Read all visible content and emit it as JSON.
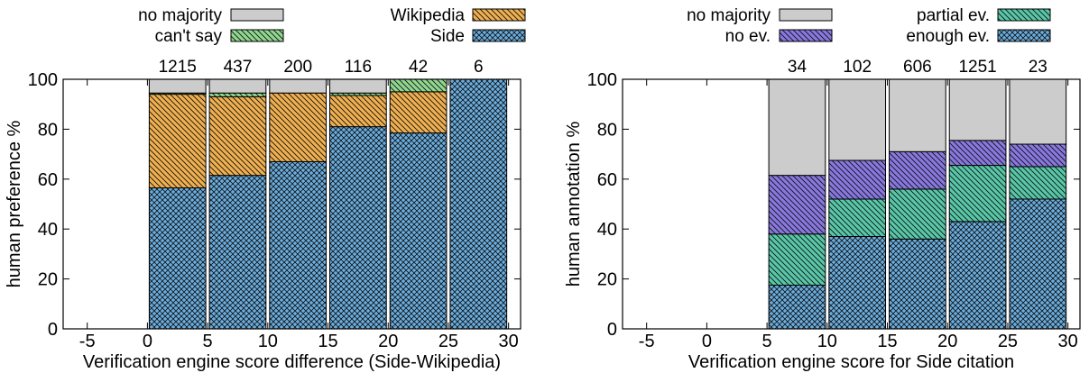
{
  "colors": {
    "no_majority": "#cccccc",
    "cant_say": "#90d890",
    "wikipedia": "#f0b050",
    "side": "#6aaee0",
    "no_ev": "#8878e0",
    "partial_ev": "#58c8a8",
    "enough_ev": "#6aaee0",
    "stroke": "#000000"
  },
  "chart_data": [
    {
      "type": "bar",
      "stacked": true,
      "title": "",
      "xlabel": "Verification engine score difference (Side-Wikipedia)",
      "ylabel": "human preference %",
      "xlim": [
        -7,
        31
      ],
      "ylim": [
        0,
        100
      ],
      "xticks": [
        -5,
        0,
        5,
        10,
        15,
        20,
        25,
        30
      ],
      "xtick_labels": [
        "-5",
        "0",
        "5",
        "10",
        "15",
        "20",
        "25",
        "30"
      ],
      "yticks": [
        0,
        20,
        40,
        60,
        80,
        100
      ],
      "ytick_labels": [
        "0",
        "20",
        "40",
        "60",
        "80",
        "100"
      ],
      "grid": false,
      "legend": "top, two columns above plot",
      "legend_order": [
        "no majority",
        "can't say",
        "Wikipedia",
        "Side"
      ],
      "bins": [
        [
          0,
          5
        ],
        [
          5,
          10
        ],
        [
          10,
          15
        ],
        [
          15,
          20
        ],
        [
          20,
          25
        ],
        [
          25,
          30
        ]
      ],
      "counts": [
        "1215",
        "437",
        "200",
        "116",
        "42",
        "6"
      ],
      "series": [
        {
          "name": "Side",
          "key": "side",
          "pattern": "cross",
          "values": [
            56.5,
            61.5,
            67,
            81,
            78.5,
            100
          ]
        },
        {
          "name": "Wikipedia",
          "key": "wikipedia",
          "pattern": "diag",
          "values": [
            37.5,
            31.5,
            27.5,
            12.5,
            16.5,
            0
          ]
        },
        {
          "name": "can't say",
          "key": "cant_say",
          "pattern": "diag",
          "values": [
            0.5,
            1.5,
            0,
            1,
            5,
            0
          ]
        },
        {
          "name": "no majority",
          "key": "no_majority",
          "pattern": "none",
          "values": [
            5.5,
            5.5,
            5.5,
            5.5,
            0,
            0
          ]
        }
      ]
    },
    {
      "type": "bar",
      "stacked": true,
      "title": "",
      "xlabel": "Verification engine score for Side citation",
      "ylabel": "human annotation %",
      "xlim": [
        -7,
        31
      ],
      "ylim": [
        0,
        100
      ],
      "xticks": [
        -5,
        0,
        5,
        10,
        15,
        20,
        25,
        30
      ],
      "xtick_labels": [
        "-5",
        "0",
        "5",
        "10",
        "15",
        "20",
        "25",
        "30"
      ],
      "yticks": [
        0,
        20,
        40,
        60,
        80,
        100
      ],
      "ytick_labels": [
        "0",
        "20",
        "40",
        "60",
        "80",
        "100"
      ],
      "grid": false,
      "legend": "top, two columns above plot",
      "legend_order": [
        "no majority",
        "no ev.",
        "partial ev.",
        "enough ev."
      ],
      "bins": [
        [
          5,
          10
        ],
        [
          10,
          15
        ],
        [
          15,
          20
        ],
        [
          20,
          25
        ],
        [
          25,
          30
        ]
      ],
      "counts": [
        "34",
        "102",
        "606",
        "1251",
        "23"
      ],
      "series": [
        {
          "name": "enough ev.",
          "key": "enough_ev",
          "pattern": "cross",
          "values": [
            17.5,
            37,
            36,
            43,
            52
          ]
        },
        {
          "name": "partial ev.",
          "key": "partial_ev",
          "pattern": "diag",
          "values": [
            20.5,
            15,
            20,
            22.5,
            13
          ]
        },
        {
          "name": "no ev.",
          "key": "no_ev",
          "pattern": "diag",
          "values": [
            23.5,
            15.5,
            15,
            10,
            9
          ]
        },
        {
          "name": "no majority",
          "key": "no_majority",
          "pattern": "none",
          "values": [
            38.5,
            32.5,
            29,
            24.5,
            26
          ]
        }
      ]
    }
  ]
}
